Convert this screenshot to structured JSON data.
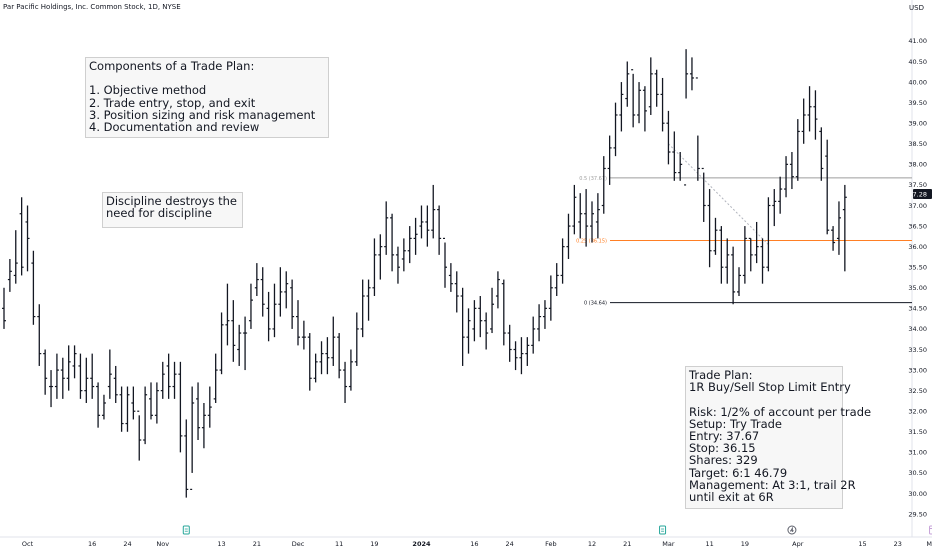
{
  "header": {
    "title": "Par Pacific Holdings, Inc. Common Stock, 1D, NYSE",
    "currency": "USD"
  },
  "notes": {
    "components": {
      "lines": [
        "Components of a Trade Plan:",
        "",
        "1. Objective method",
        "2. Trade entry, stop, and exit",
        "3. Position sizing and risk management",
        "4. Documentation and review"
      ]
    },
    "discipline": {
      "lines": [
        "Discipline destroys the",
        "need for discipline"
      ]
    },
    "trade_plan": {
      "lines": [
        "Trade Plan:",
        "1R Buy/Sell Stop Limit Entry",
        "",
        "Risk: 1/2% of account per trade",
        "Setup: Try Trade",
        "Entry: 37.67",
        "Stop: 36.15",
        "Shares: 329",
        "Target: 6:1 46.79",
        "Management: At 3:1, trail 2R",
        "until exit at 6R"
      ]
    }
  },
  "colors": {
    "bars": "#131722",
    "fib_upper": "#9e9e9e",
    "fib_middle": "#ff7f24",
    "fib_lower": "#131722",
    "price_tag": "#131722",
    "event_icon": "#26a69a",
    "earnings_icon": "#5d606b",
    "calendar_icon": "#c6a2d8"
  },
  "chart_data": {
    "type": "ohlc",
    "y_axis": {
      "range": [
        29.25,
        41.25
      ],
      "ticks": [
        "29.50",
        "30.00",
        "30.50",
        "31.00",
        "31.50",
        "32.00",
        "32.50",
        "33.00",
        "33.50",
        "34.00",
        "34.50",
        "35.00",
        "35.50",
        "36.00",
        "36.50",
        "37.00",
        "37.50",
        "38.00",
        "38.50",
        "39.00",
        "39.50",
        "40.00",
        "40.50",
        "41.00"
      ]
    },
    "x_axis": {
      "labels": [
        {
          "text": "Oct",
          "bar": 4,
          "bold": false
        },
        {
          "text": "16",
          "bar": 15,
          "bold": false
        },
        {
          "text": "24",
          "bar": 21,
          "bold": false
        },
        {
          "text": "Nov",
          "bar": 27,
          "bold": false
        },
        {
          "text": "13",
          "bar": 37,
          "bold": false
        },
        {
          "text": "21",
          "bar": 43,
          "bold": false
        },
        {
          "text": "Dec",
          "bar": 50,
          "bold": false
        },
        {
          "text": "11",
          "bar": 57,
          "bold": false
        },
        {
          "text": "19",
          "bar": 63,
          "bold": false
        },
        {
          "text": "2024",
          "bar": 71,
          "bold": true
        },
        {
          "text": "16",
          "bar": 80,
          "bold": false
        },
        {
          "text": "24",
          "bar": 86,
          "bold": false
        },
        {
          "text": "Feb",
          "bar": 93,
          "bold": false
        },
        {
          "text": "12",
          "bar": 100,
          "bold": false
        },
        {
          "text": "21",
          "bar": 106,
          "bold": false
        },
        {
          "text": "Mar",
          "bar": 113,
          "bold": false
        },
        {
          "text": "11",
          "bar": 120,
          "bold": false
        },
        {
          "text": "19",
          "bar": 126,
          "bold": false
        },
        {
          "text": "Apr",
          "bar": 135,
          "bold": false
        },
        {
          "text": "15",
          "bar": 146,
          "bold": false
        },
        {
          "text": "23",
          "bar": 152,
          "bold": false
        },
        {
          "text": "May",
          "bar": 158,
          "bold": false
        }
      ]
    },
    "bars": [
      [
        34.5,
        35.0,
        34.0,
        34.2
      ],
      [
        35.2,
        35.7,
        34.9,
        35.4
      ],
      [
        35.3,
        36.4,
        35.1,
        35.6
      ],
      [
        36.8,
        37.2,
        35.3,
        35.5
      ],
      [
        36.6,
        37.0,
        35.4,
        36.2
      ],
      [
        35.6,
        35.9,
        34.1,
        34.3
      ],
      [
        34.3,
        34.6,
        33.1,
        33.4
      ],
      [
        33.4,
        33.5,
        32.4,
        32.8
      ],
      [
        32.6,
        33.0,
        32.1,
        32.6
      ],
      [
        32.6,
        33.4,
        32.3,
        33.0
      ],
      [
        33.0,
        33.3,
        32.3,
        32.8
      ],
      [
        32.8,
        33.6,
        32.5,
        33.2
      ],
      [
        33.1,
        33.6,
        32.8,
        33.4
      ],
      [
        33.1,
        33.4,
        32.3,
        32.5
      ],
      [
        32.5,
        33.3,
        32.2,
        32.8
      ],
      [
        32.8,
        33.4,
        32.3,
        32.6
      ],
      [
        32.6,
        32.7,
        31.6,
        31.9
      ],
      [
        31.9,
        32.4,
        31.8,
        32.2
      ],
      [
        32.6,
        33.5,
        32.3,
        32.9
      ],
      [
        32.8,
        33.1,
        32.2,
        32.4
      ],
      [
        32.4,
        32.6,
        31.5,
        31.7
      ],
      [
        31.7,
        32.6,
        31.5,
        32.4
      ],
      [
        32.2,
        32.6,
        31.8,
        32.0
      ],
      [
        32.0,
        31.9,
        30.8,
        31.3
      ],
      [
        31.3,
        32.6,
        31.2,
        32.4
      ],
      [
        32.3,
        32.7,
        31.8,
        31.9
      ],
      [
        31.9,
        32.7,
        31.7,
        32.5
      ],
      [
        32.5,
        33.2,
        32.3,
        32.9
      ],
      [
        33.1,
        33.4,
        32.3,
        32.6
      ],
      [
        32.6,
        33.2,
        32.3,
        32.9
      ],
      [
        32.9,
        33.2,
        31.0,
        31.4
      ],
      [
        31.4,
        31.8,
        29.9,
        30.1
      ],
      [
        30.1,
        32.6,
        30.5,
        32.2
      ],
      [
        32.3,
        32.7,
        31.3,
        31.6
      ],
      [
        31.6,
        32.2,
        31.1,
        31.9
      ],
      [
        31.9,
        32.6,
        31.6,
        32.1
      ],
      [
        32.3,
        33.4,
        32.2,
        33.0
      ],
      [
        33.0,
        34.4,
        32.9,
        34.1
      ],
      [
        34.1,
        35.1,
        33.6,
        34.2
      ],
      [
        34.2,
        34.7,
        33.2,
        33.6
      ],
      [
        33.5,
        34.1,
        33.1,
        33.9
      ],
      [
        33.9,
        34.3,
        33.0,
        33.9
      ],
      [
        34.2,
        35.1,
        34.0,
        34.7
      ],
      [
        35.0,
        35.6,
        34.8,
        35.2
      ],
      [
        35.2,
        35.5,
        34.3,
        34.6
      ],
      [
        34.5,
        34.9,
        33.7,
        34.0
      ],
      [
        34.0,
        35.1,
        33.8,
        34.6
      ],
      [
        34.6,
        35.5,
        34.3,
        34.9
      ],
      [
        34.9,
        35.4,
        34.5,
        35.1
      ],
      [
        35.0,
        35.2,
        34.0,
        34.3
      ],
      [
        34.3,
        34.7,
        33.6,
        33.8
      ],
      [
        33.8,
        34.2,
        33.5,
        33.8
      ],
      [
        33.8,
        33.9,
        32.5,
        32.8
      ],
      [
        32.8,
        33.4,
        32.7,
        33.2
      ],
      [
        33.2,
        33.7,
        32.9,
        33.4
      ],
      [
        33.4,
        33.8,
        32.9,
        33.3
      ],
      [
        33.3,
        34.3,
        33.1,
        33.8
      ],
      [
        33.8,
        33.9,
        32.8,
        33.0
      ],
      [
        33.0,
        33.2,
        32.2,
        32.6
      ],
      [
        32.6,
        33.5,
        32.5,
        33.2
      ],
      [
        33.2,
        34.4,
        33.1,
        34.0
      ],
      [
        34.0,
        35.2,
        33.8,
        34.8
      ],
      [
        34.8,
        35.2,
        34.2,
        35.0
      ],
      [
        35.0,
        36.2,
        34.8,
        35.8
      ],
      [
        35.8,
        36.3,
        35.2,
        36.0
      ],
      [
        36.0,
        37.1,
        35.8,
        36.7
      ],
      [
        36.7,
        36.8,
        35.4,
        35.8
      ],
      [
        35.8,
        36.0,
        35.1,
        35.5
      ],
      [
        35.7,
        36.2,
        35.4,
        35.9
      ],
      [
        35.9,
        36.5,
        35.6,
        36.2
      ],
      [
        36.2,
        36.7,
        35.8,
        36.3
      ],
      [
        36.5,
        37.0,
        36.2,
        36.6
      ],
      [
        36.6,
        37.0,
        36.0,
        36.4
      ],
      [
        36.4,
        37.5,
        36.2,
        36.9
      ],
      [
        36.9,
        37.0,
        35.8,
        36.2
      ],
      [
        36.2,
        36.1,
        35.0,
        35.5
      ],
      [
        35.3,
        35.6,
        34.9,
        35.1
      ],
      [
        35.1,
        35.4,
        34.4,
        34.8
      ],
      [
        34.8,
        35.0,
        33.1,
        33.8
      ],
      [
        33.8,
        34.5,
        33.4,
        34.2
      ],
      [
        34.0,
        34.7,
        33.7,
        34.5
      ],
      [
        34.5,
        34.8,
        33.8,
        34.2
      ],
      [
        34.2,
        34.4,
        33.5,
        33.9
      ],
      [
        34.0,
        35.0,
        33.9,
        34.6
      ],
      [
        34.8,
        35.4,
        34.5,
        35.2
      ],
      [
        35.1,
        35.2,
        33.6,
        33.9
      ],
      [
        33.9,
        34.1,
        33.2,
        33.5
      ],
      [
        33.5,
        33.7,
        33.0,
        33.3
      ],
      [
        33.3,
        33.8,
        32.9,
        33.4
      ],
      [
        33.4,
        33.8,
        33.1,
        33.6
      ],
      [
        33.6,
        34.3,
        33.4,
        34.0
      ],
      [
        34.0,
        34.6,
        33.7,
        34.3
      ],
      [
        34.3,
        34.7,
        34.0,
        34.5
      ],
      [
        34.5,
        35.3,
        34.2,
        35.0
      ],
      [
        35.0,
        35.6,
        34.8,
        35.3
      ],
      [
        35.3,
        36.2,
        35.1,
        36.0
      ],
      [
        36.0,
        36.8,
        35.7,
        36.5
      ],
      [
        36.5,
        37.5,
        36.3,
        37.2
      ],
      [
        36.6,
        37.3,
        36.2,
        36.8
      ],
      [
        36.8,
        37.4,
        36.0,
        36.5
      ],
      [
        36.5,
        37.1,
        36.1,
        36.8
      ],
      [
        36.6,
        37.3,
        36.2,
        36.9
      ],
      [
        37.0,
        38.2,
        36.8,
        37.9
      ],
      [
        37.9,
        38.7,
        37.5,
        38.4
      ],
      [
        38.4,
        39.5,
        38.2,
        39.2
      ],
      [
        39.2,
        40.0,
        38.8,
        39.7
      ],
      [
        39.6,
        40.5,
        39.4,
        40.2
      ],
      [
        40.3,
        40.2,
        38.9,
        39.2
      ],
      [
        39.2,
        40.0,
        39.0,
        39.8
      ],
      [
        39.8,
        39.9,
        38.8,
        39.3
      ],
      [
        39.4,
        40.6,
        39.2,
        40.2
      ],
      [
        40.2,
        40.3,
        39.4,
        39.7
      ],
      [
        39.7,
        40.1,
        38.8,
        39.0
      ],
      [
        39.0,
        39.3,
        38.0,
        38.3
      ],
      [
        38.3,
        38.8,
        37.6,
        37.8
      ],
      [
        37.8,
        38.3,
        37.6,
        38.0
      ],
      [
        37.5,
        40.8,
        39.6,
        40.2
      ],
      [
        40.2,
        40.6,
        39.8,
        40.1
      ],
      [
        40.1,
        38.7,
        37.6,
        37.9
      ],
      [
        37.9,
        37.8,
        36.6,
        37.0
      ],
      [
        37.0,
        37.4,
        35.5,
        35.9
      ],
      [
        35.9,
        36.7,
        35.8,
        36.4
      ],
      [
        36.4,
        36.5,
        35.1,
        35.5
      ],
      [
        35.5,
        36.2,
        35.1,
        35.8
      ],
      [
        35.8,
        36.0,
        34.6,
        34.9
      ],
      [
        34.9,
        35.5,
        34.8,
        35.3
      ],
      [
        35.3,
        36.5,
        35.1,
        36.2
      ],
      [
        36.2,
        36.2,
        35.4,
        35.8
      ],
      [
        35.8,
        36.6,
        35.6,
        36.0
      ],
      [
        36.0,
        36.2,
        35.1,
        35.5
      ],
      [
        35.5,
        37.2,
        35.4,
        37.0
      ],
      [
        37.0,
        37.4,
        36.5,
        37.1
      ],
      [
        37.1,
        37.7,
        36.8,
        37.4
      ],
      [
        37.4,
        38.2,
        37.2,
        38.0
      ],
      [
        38.0,
        38.3,
        37.4,
        37.7
      ],
      [
        37.7,
        39.1,
        37.6,
        38.8
      ],
      [
        38.8,
        39.6,
        38.5,
        39.2
      ],
      [
        39.2,
        39.9,
        38.8,
        39.4
      ],
      [
        39.4,
        39.8,
        38.6,
        39.1
      ],
      [
        38.8,
        38.9,
        37.6,
        37.9
      ],
      [
        38.2,
        38.6,
        36.3,
        36.4
      ],
      [
        36.4,
        36.5,
        35.9,
        36.1
      ],
      [
        36.2,
        37.1,
        35.8,
        36.7
      ],
      [
        36.9,
        37.5,
        35.4,
        37.2
      ]
    ],
    "fib_levels": [
      {
        "label": "0.5 (37.67)",
        "value": 37.67,
        "role": "upper"
      },
      {
        "label": "0.25 (36.15)",
        "value": 36.15,
        "role": "middle"
      },
      {
        "label": "0 (34.64)",
        "value": 34.64,
        "role": "lower"
      }
    ],
    "trend_line": {
      "from_bar": 113,
      "from_price": 38.5,
      "to_bar": 130,
      "to_price": 36.05
    },
    "last_price": {
      "value": 37.28,
      "label": "37.28"
    },
    "markers": [
      {
        "bar": 31,
        "kind": "event"
      },
      {
        "bar": 112,
        "kind": "event"
      },
      {
        "bar": 134,
        "kind": "earnings"
      },
      {
        "bar": 158,
        "kind": "calendar"
      }
    ]
  }
}
